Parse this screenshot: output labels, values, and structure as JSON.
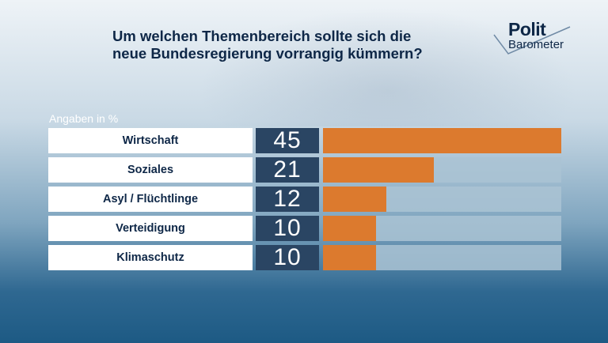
{
  "title_line1": "Um welchen Themenbereich sollte sich die",
  "title_line2": "neue Bundesregierung vorrangig kümmern?",
  "logo": {
    "line1": "Polit",
    "line2": "Barometer"
  },
  "unit_label": "Angaben in %",
  "colors": {
    "bar": "#dc7a2e",
    "value_box": "#2a4563",
    "title": "#0e2747"
  },
  "chart_data": {
    "type": "bar",
    "orientation": "horizontal",
    "categories": [
      "Wirtschaft",
      "Soziales",
      "Asyl / Flüchtlinge",
      "Verteidigung",
      "Klimaschutz"
    ],
    "values": [
      45,
      21,
      12,
      10,
      10
    ],
    "ylabel": "Angaben in %",
    "xlim": [
      0,
      45
    ],
    "grid": false
  }
}
